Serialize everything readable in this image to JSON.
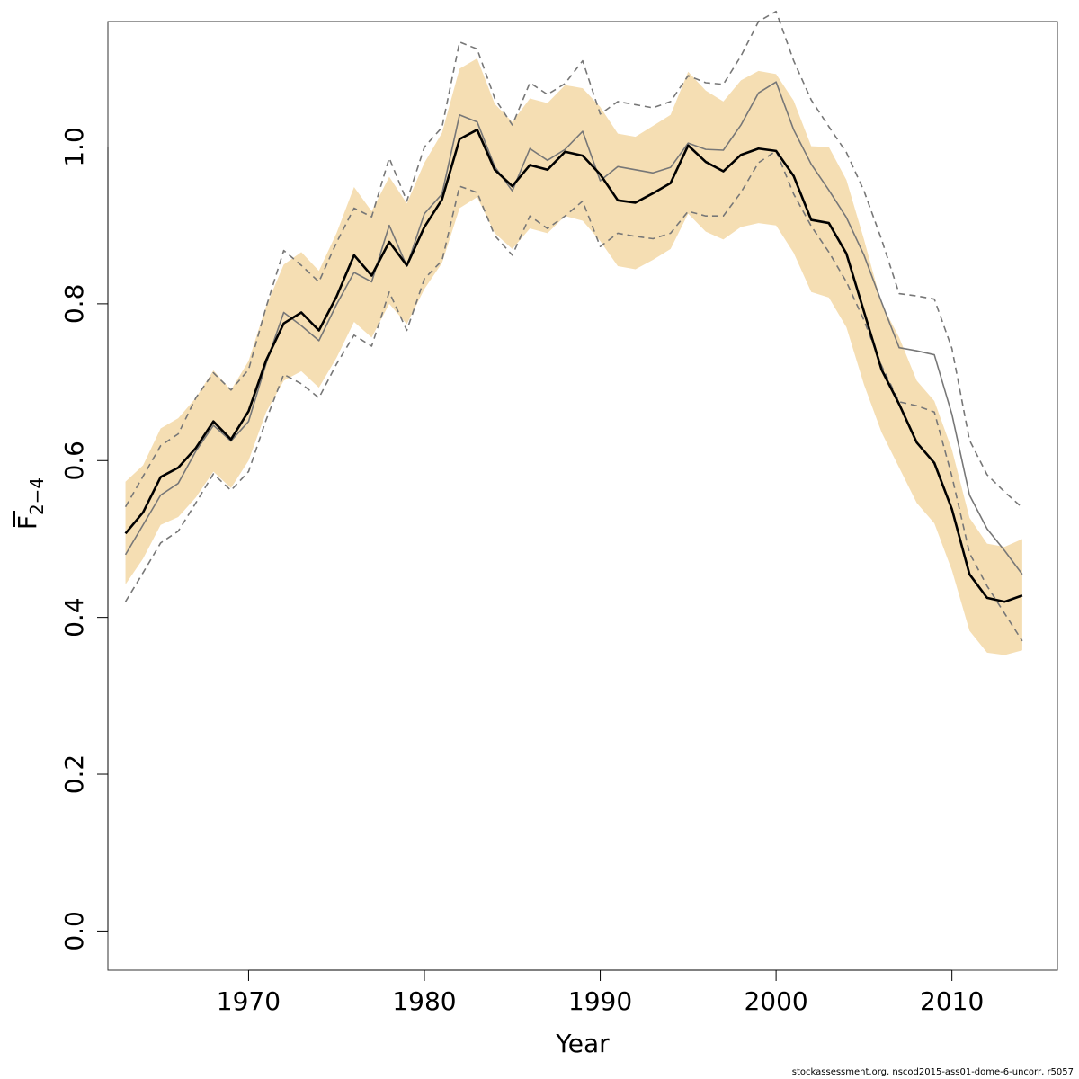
{
  "chart_data": {
    "type": "line",
    "title": "",
    "xlabel": "Year",
    "ylabel": {
      "main": "F",
      "subscript": "2−4"
    },
    "xlim": [
      1962,
      2016
    ],
    "ylim": [
      -0.05,
      1.16
    ],
    "xticks": [
      1970,
      1980,
      1990,
      2000,
      2010
    ],
    "yticks": [
      0.0,
      0.2,
      0.4,
      0.6,
      0.8,
      1.0
    ],
    "ytick_labels": [
      "0.0",
      "0.2",
      "0.4",
      "0.6",
      "0.8",
      "1.0"
    ],
    "colors": {
      "band": "#f5deb3",
      "main": "#000000",
      "alt": "#777777",
      "alt_bounds": "#777777"
    },
    "x": [
      1963,
      1964,
      1965,
      1966,
      1967,
      1968,
      1969,
      1970,
      1971,
      1972,
      1973,
      1974,
      1975,
      1976,
      1977,
      1978,
      1979,
      1980,
      1981,
      1982,
      1983,
      1984,
      1985,
      1986,
      1987,
      1988,
      1989,
      1990,
      1991,
      1992,
      1993,
      1994,
      1995,
      1996,
      1997,
      1998,
      1999,
      2000,
      2001,
      2002,
      2003,
      2004,
      2005,
      2006,
      2007,
      2008,
      2009,
      2010,
      2011,
      2012,
      2013,
      2014
    ],
    "series": [
      {
        "role": "estimate",
        "values": [
          0.507,
          0.534,
          0.579,
          0.591,
          0.616,
          0.65,
          0.627,
          0.663,
          0.728,
          0.775,
          0.789,
          0.766,
          0.809,
          0.862,
          0.836,
          0.879,
          0.849,
          0.898,
          0.933,
          1.01,
          1.022,
          0.971,
          0.95,
          0.977,
          0.971,
          0.994,
          0.989,
          0.965,
          0.932,
          0.929,
          0.941,
          0.954,
          1.002,
          0.981,
          0.969,
          0.99,
          0.998,
          0.995,
          0.963,
          0.907,
          0.903,
          0.864,
          0.79,
          0.716,
          0.672,
          0.623,
          0.597,
          0.538,
          0.455,
          0.425,
          0.42,
          0.428
        ]
      },
      {
        "role": "estimate_lower",
        "values": [
          0.442,
          0.475,
          0.518,
          0.528,
          0.553,
          0.586,
          0.565,
          0.6,
          0.662,
          0.702,
          0.714,
          0.693,
          0.731,
          0.777,
          0.757,
          0.8,
          0.774,
          0.819,
          0.852,
          0.922,
          0.936,
          0.89,
          0.87,
          0.896,
          0.89,
          0.912,
          0.906,
          0.88,
          0.848,
          0.844,
          0.856,
          0.87,
          0.915,
          0.892,
          0.882,
          0.898,
          0.903,
          0.9,
          0.865,
          0.815,
          0.808,
          0.77,
          0.697,
          0.636,
          0.591,
          0.546,
          0.52,
          0.46,
          0.383,
          0.355,
          0.352,
          0.358
        ]
      },
      {
        "role": "estimate_upper",
        "values": [
          0.573,
          0.594,
          0.641,
          0.654,
          0.68,
          0.715,
          0.69,
          0.727,
          0.797,
          0.85,
          0.866,
          0.842,
          0.89,
          0.949,
          0.918,
          0.962,
          0.928,
          0.98,
          1.018,
          1.1,
          1.113,
          1.055,
          1.032,
          1.062,
          1.056,
          1.079,
          1.075,
          1.051,
          1.017,
          1.013,
          1.027,
          1.041,
          1.096,
          1.072,
          1.058,
          1.085,
          1.097,
          1.093,
          1.059,
          1.001,
          1.0,
          0.958,
          0.882,
          0.8,
          0.757,
          0.702,
          0.676,
          0.614,
          0.527,
          0.494,
          0.49,
          0.5
        ]
      },
      {
        "role": "alternative",
        "values": [
          0.48,
          0.518,
          0.556,
          0.571,
          0.612,
          0.645,
          0.625,
          0.65,
          0.724,
          0.789,
          0.772,
          0.753,
          0.799,
          0.84,
          0.828,
          0.9,
          0.848,
          0.915,
          0.94,
          1.041,
          1.032,
          0.975,
          0.944,
          0.998,
          0.983,
          0.997,
          1.02,
          0.957,
          0.975,
          0.971,
          0.967,
          0.974,
          1.005,
          0.997,
          0.996,
          1.028,
          1.069,
          1.083,
          1.022,
          0.978,
          0.945,
          0.91,
          0.862,
          0.802,
          0.744,
          0.74,
          0.735,
          0.659,
          0.556,
          0.513,
          0.485,
          0.455
        ]
      },
      {
        "role": "alternative_lower",
        "values": [
          0.42,
          0.457,
          0.495,
          0.51,
          0.546,
          0.583,
          0.562,
          0.586,
          0.652,
          0.71,
          0.698,
          0.68,
          0.723,
          0.76,
          0.746,
          0.815,
          0.766,
          0.832,
          0.855,
          0.95,
          0.942,
          0.887,
          0.862,
          0.912,
          0.896,
          0.912,
          0.931,
          0.873,
          0.89,
          0.886,
          0.883,
          0.89,
          0.918,
          0.912,
          0.912,
          0.942,
          0.98,
          0.995,
          0.94,
          0.899,
          0.866,
          0.828,
          0.779,
          0.721,
          0.675,
          0.67,
          0.662,
          0.58,
          0.482,
          0.44,
          0.405,
          0.37
        ]
      },
      {
        "role": "alternative_upper",
        "values": [
          0.541,
          0.58,
          0.619,
          0.634,
          0.68,
          0.712,
          0.69,
          0.716,
          0.796,
          0.868,
          0.849,
          0.828,
          0.878,
          0.922,
          0.911,
          0.986,
          0.931,
          1.0,
          1.025,
          1.134,
          1.125,
          1.062,
          1.028,
          1.082,
          1.067,
          1.081,
          1.11,
          1.042,
          1.058,
          1.054,
          1.05,
          1.058,
          1.091,
          1.082,
          1.08,
          1.116,
          1.16,
          1.173,
          1.11,
          1.06,
          1.026,
          0.993,
          0.944,
          0.882,
          0.813,
          0.81,
          0.806,
          0.743,
          0.626,
          0.582,
          0.56,
          0.54
        ]
      }
    ]
  },
  "footer": {
    "text": "stockassessment.org, nscod2015-ass01-dome-6-uncorr, r5057"
  }
}
